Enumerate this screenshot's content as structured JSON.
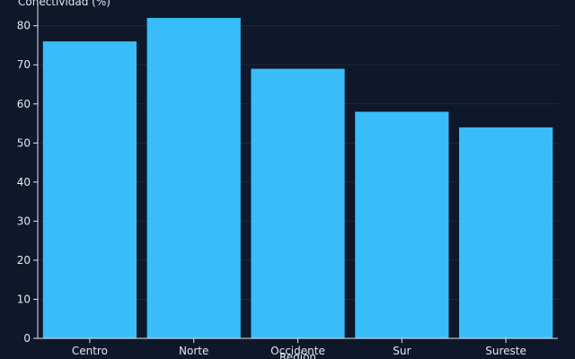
{
  "chart_data": {
    "type": "bar",
    "categories": [
      "Centro",
      "Norte",
      "Occidente",
      "Sur",
      "Sureste"
    ],
    "values": [
      76,
      82,
      69,
      58,
      54
    ],
    "xlabel": "Región",
    "ylabel": "Conectividad (%)",
    "ylim": [
      0,
      82
    ],
    "yticks": [
      0,
      10,
      20,
      30,
      40,
      50,
      60,
      70,
      80
    ],
    "grid": true,
    "colors": {
      "bar": "#38bdf8",
      "background": "#0f172a",
      "grid": "#1e293b",
      "axis": "#e2e8f0",
      "text": "#e2e8f0"
    }
  }
}
